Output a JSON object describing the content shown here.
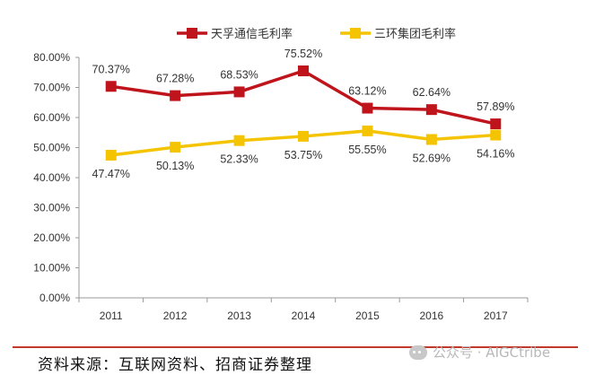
{
  "chart_data": {
    "type": "line",
    "categories": [
      "2011",
      "2012",
      "2013",
      "2014",
      "2015",
      "2016",
      "2017"
    ],
    "series": [
      {
        "name": "天孚通信毛利率",
        "color": "#c0141c",
        "values": [
          70.37,
          67.28,
          68.53,
          75.52,
          63.12,
          62.64,
          57.89
        ],
        "labels": [
          "70.37%",
          "67.28%",
          "68.53%",
          "75.52%",
          "63.12%",
          "62.64%",
          "57.89%"
        ]
      },
      {
        "name": "三环集团毛利率",
        "color": "#f5c400",
        "values": [
          47.47,
          50.13,
          52.33,
          53.75,
          55.55,
          52.69,
          54.16
        ],
        "labels": [
          "47.47%",
          "50.13%",
          "52.33%",
          "53.75%",
          "55.55%",
          "52.69%",
          "54.16%"
        ]
      }
    ],
    "ylim": [
      0,
      80
    ],
    "yticks": [
      "0.00%",
      "10.00%",
      "20.00%",
      "30.00%",
      "40.00%",
      "50.00%",
      "60.00%",
      "70.00%",
      "80.00%"
    ],
    "legend_position": "top"
  },
  "footer": {
    "source": "资料来源：互联网资料、招商证券整理",
    "watermark": "公众号 · AIGCtribe"
  }
}
